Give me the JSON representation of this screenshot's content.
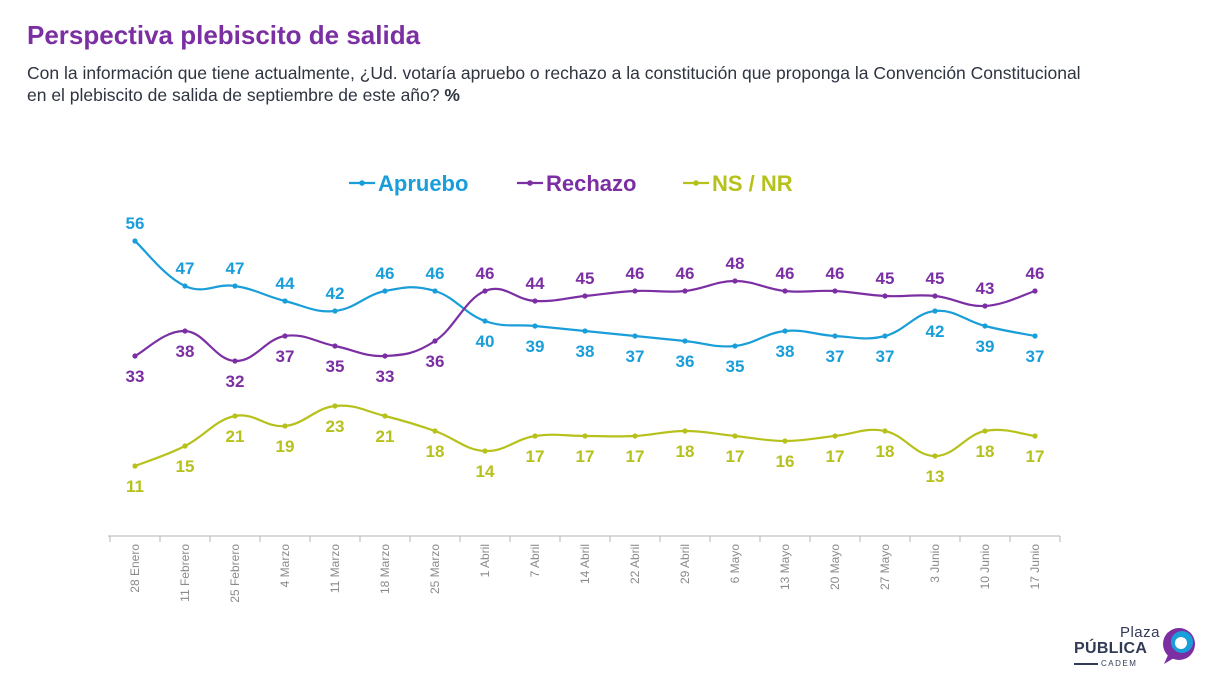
{
  "header": {
    "title": "Perspectiva plebiscito de salida",
    "subtitle": "Con la información que tiene actualmente, ¿Ud. votaría apruebo o rechazo a la constitución que proponga la Convención Constitucional en el plebiscito de salida de septiembre de este año?",
    "subtitle_unit": "%"
  },
  "brand": {
    "line1": "Plaza",
    "line2": "PÚBLICA",
    "line3": "CADEM"
  },
  "colors": {
    "apruebo": "#1a9ed9",
    "rechazo": "#7b2fa3",
    "nsnr": "#b6c11b",
    "axis": "#b4b4b4",
    "ticklabel": "#8a8a8a"
  },
  "chart_data": {
    "type": "line",
    "categories": [
      "28 Enero",
      "11 Febrero",
      "25 Febrero",
      "4 Marzo",
      "11 Marzo",
      "18 Marzo",
      "25 Marzo",
      "1 Abril",
      "7 Abril",
      "14 Abril",
      "22 Abril",
      "29 Abril",
      "6 Mayo",
      "13 Mayo",
      "20 Mayo",
      "27 Mayo",
      "3 Junio",
      "10 Junio",
      "17 Junio"
    ],
    "series": [
      {
        "name": "Apruebo",
        "key": "apruebo",
        "values": [
          56,
          47,
          47,
          44,
          42,
          46,
          46,
          40,
          39,
          38,
          37,
          36,
          35,
          38,
          37,
          37,
          42,
          39,
          37
        ]
      },
      {
        "name": "Rechazo",
        "key": "rechazo",
        "values": [
          33,
          38,
          32,
          37,
          35,
          33,
          36,
          46,
          44,
          45,
          46,
          46,
          48,
          46,
          46,
          45,
          45,
          43,
          46
        ]
      },
      {
        "name": "NS / NR",
        "key": "nsnr",
        "values": [
          11,
          15,
          21,
          19,
          23,
          21,
          18,
          14,
          17,
          17,
          17,
          18,
          17,
          16,
          17,
          18,
          13,
          18,
          17
        ]
      }
    ],
    "legend_position": "top-center",
    "grid": false
  }
}
